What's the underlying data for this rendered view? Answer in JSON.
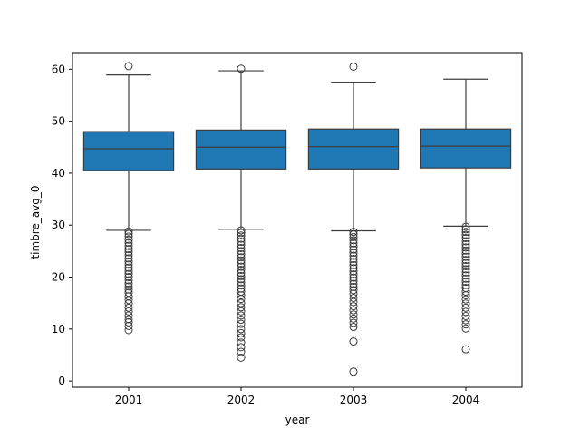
{
  "chart_data": {
    "type": "box",
    "xlabel": "year",
    "ylabel": "timbre_avg_0",
    "categories": [
      "2001",
      "2002",
      "2003",
      "2004"
    ],
    "ylim": [
      -1.2,
      63.2
    ],
    "yticks": [
      0,
      10,
      20,
      30,
      40,
      50,
      60
    ],
    "grid": false,
    "box_color": "#1f77b4",
    "boxes": [
      {
        "category": "2001",
        "q1": 40.5,
        "median": 44.7,
        "q3": 48.0,
        "whisker_low": 29.0,
        "whisker_high": 58.9,
        "outliers": [
          60.6,
          28.8,
          28.3,
          27.8,
          27.2,
          26.6,
          26.0,
          25.4,
          24.8,
          24.2,
          23.6,
          23.0,
          22.4,
          21.8,
          21.2,
          20.6,
          20.0,
          19.4,
          18.8,
          18.2,
          17.6,
          17.0,
          16.3,
          15.6,
          14.9,
          14.1,
          13.4,
          12.6,
          11.9,
          11.3,
          10.6,
          9.8
        ]
      },
      {
        "category": "2002",
        "q1": 40.8,
        "median": 45.0,
        "q3": 48.3,
        "whisker_low": 29.2,
        "whisker_high": 59.7,
        "outliers": [
          60.1,
          29.0,
          28.5,
          28.0,
          27.4,
          26.8,
          26.2,
          25.6,
          25.0,
          24.4,
          23.8,
          23.2,
          22.6,
          22.0,
          21.4,
          20.8,
          20.2,
          19.6,
          19.0,
          18.4,
          17.8,
          17.2,
          16.5,
          15.8,
          15.0,
          14.2,
          13.4,
          12.6,
          11.8,
          11.0,
          10.0,
          9.2,
          8.4,
          7.4,
          6.5,
          5.6,
          4.5
        ]
      },
      {
        "category": "2003",
        "q1": 40.8,
        "median": 45.1,
        "q3": 48.5,
        "whisker_low": 28.9,
        "whisker_high": 57.5,
        "outliers": [
          60.5,
          28.7,
          28.2,
          27.7,
          27.1,
          26.5,
          25.9,
          25.3,
          24.7,
          24.1,
          23.5,
          22.9,
          22.3,
          21.7,
          21.1,
          20.5,
          19.9,
          19.3,
          18.7,
          18.1,
          17.5,
          16.8,
          16.0,
          15.2,
          14.4,
          13.6,
          12.8,
          12.0,
          11.2,
          10.4,
          7.6,
          1.8
        ]
      },
      {
        "category": "2004",
        "q1": 41.0,
        "median": 45.2,
        "q3": 48.5,
        "whisker_low": 29.8,
        "whisker_high": 58.1,
        "outliers": [
          29.7,
          29.2,
          28.7,
          28.1,
          27.5,
          26.9,
          26.3,
          25.7,
          25.1,
          24.5,
          23.9,
          23.3,
          22.7,
          22.1,
          21.5,
          20.9,
          20.3,
          19.7,
          19.1,
          18.5,
          17.9,
          17.2,
          16.5,
          15.7,
          14.9,
          14.1,
          13.3,
          12.5,
          11.7,
          10.9,
          10.1,
          6.1
        ]
      }
    ]
  }
}
